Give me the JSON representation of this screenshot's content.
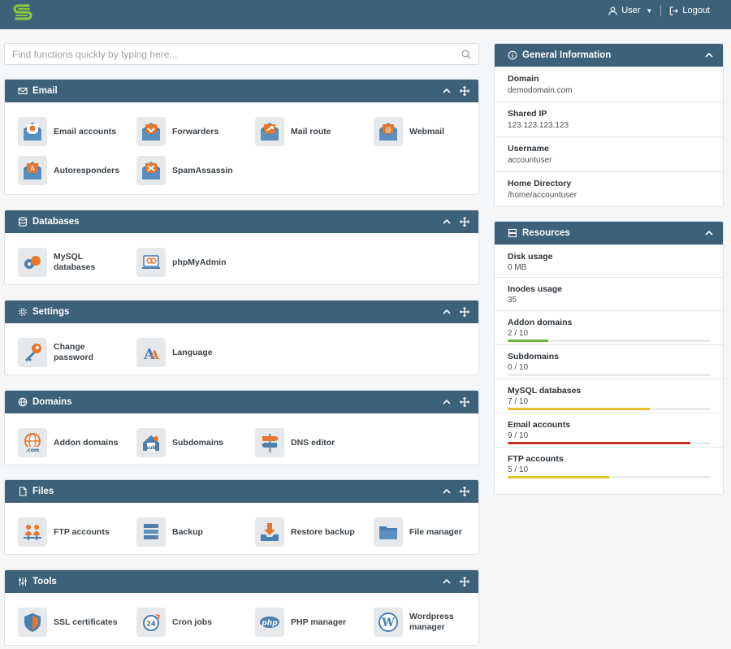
{
  "header": {
    "user_label": "User",
    "logout_label": "Logout",
    "brand_color": "#3d6179",
    "logo_color": "#8cc63f"
  },
  "search": {
    "placeholder": "Find functions quickly by typing here..."
  },
  "sections": [
    {
      "title": "Email",
      "icon": "envelope-icon",
      "items": [
        {
          "label": "Email accounts",
          "icon": "email-accounts-icon"
        },
        {
          "label": "Forwarders",
          "icon": "forwarders-icon"
        },
        {
          "label": "Mail route",
          "icon": "mail-route-icon"
        },
        {
          "label": "Webmail",
          "icon": "webmail-icon"
        },
        {
          "label": "Autoresponders",
          "icon": "autoresponders-icon"
        },
        {
          "label": "SpamAssassin",
          "icon": "spamassassin-icon"
        }
      ]
    },
    {
      "title": "Databases",
      "icon": "database-icon",
      "items": [
        {
          "label": "MySQL databases",
          "icon": "mysql-icon"
        },
        {
          "label": "phpMyAdmin",
          "icon": "phpmyadmin-icon"
        }
      ]
    },
    {
      "title": "Settings",
      "icon": "gear-icon",
      "items": [
        {
          "label": "Change password",
          "icon": "change-password-icon"
        },
        {
          "label": "Language",
          "icon": "language-icon"
        }
      ]
    },
    {
      "title": "Domains",
      "icon": "globe-icon",
      "items": [
        {
          "label": "Addon domains",
          "icon": "addon-domains-icon"
        },
        {
          "label": "Subdomains",
          "icon": "subdomains-icon"
        },
        {
          "label": "DNS editor",
          "icon": "dns-editor-icon"
        }
      ]
    },
    {
      "title": "Files",
      "icon": "file-icon",
      "items": [
        {
          "label": "FTP accounts",
          "icon": "ftp-accounts-icon"
        },
        {
          "label": "Backup",
          "icon": "backup-icon"
        },
        {
          "label": "Restore backup",
          "icon": "restore-backup-icon"
        },
        {
          "label": "File manager",
          "icon": "file-manager-icon"
        }
      ]
    },
    {
      "title": "Tools",
      "icon": "sliders-icon",
      "items": [
        {
          "label": "SSL certificates",
          "icon": "ssl-icon"
        },
        {
          "label": "Cron jobs",
          "icon": "cron-icon"
        },
        {
          "label": "PHP manager",
          "icon": "php-icon"
        },
        {
          "label": "Wordpress manager",
          "icon": "wordpress-icon"
        }
      ]
    }
  ],
  "general": {
    "title": "General Information",
    "rows": [
      {
        "key": "Domain",
        "value": "demodomain.com"
      },
      {
        "key": "Shared IP",
        "value": "123.123.123.123"
      },
      {
        "key": "Username",
        "value": "accountuser"
      },
      {
        "key": "Home Directory",
        "value": "/home/accountuser"
      }
    ]
  },
  "resources": {
    "title": "Resources",
    "rows": [
      {
        "key": "Disk usage",
        "value": "0 MB",
        "fraction": null,
        "color": null
      },
      {
        "key": "Inodes usage",
        "value": "35",
        "fraction": null,
        "color": null
      },
      {
        "key": "Addon domains",
        "value": "2 / 10",
        "fraction": 0.2,
        "color": "#6cb33e"
      },
      {
        "key": "Subdomains",
        "value": "0 / 10",
        "fraction": 0.0,
        "color": "#6cb33e"
      },
      {
        "key": "MySQL databases",
        "value": "7 / 10",
        "fraction": 0.7,
        "color": "#e6c229"
      },
      {
        "key": "Email accounts",
        "value": "9 / 10",
        "fraction": 0.9,
        "color": "#c9302c"
      },
      {
        "key": "FTP accounts",
        "value": "5 / 10",
        "fraction": 0.5,
        "color": "#e6c229"
      }
    ]
  }
}
